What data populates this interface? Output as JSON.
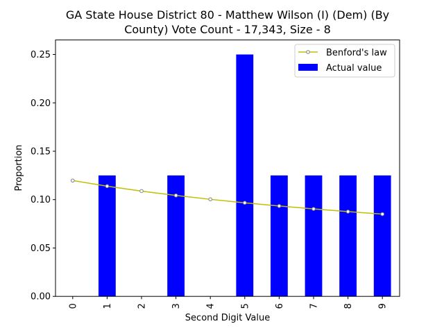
{
  "chart_data": {
    "type": "bar",
    "title_line1": "GA State House District 80 - Matthew Wilson (I) (Dem) (By",
    "title_line2": "County) Vote Count - 17,343, Size - 8",
    "xlabel": "Second Digit Value",
    "ylabel": "Proportion",
    "categories": [
      "0",
      "1",
      "2",
      "3",
      "4",
      "5",
      "6",
      "7",
      "8",
      "9"
    ],
    "ylim": [
      0,
      0.265
    ],
    "yticks": [
      "0.00",
      "0.05",
      "0.10",
      "0.15",
      "0.20",
      "0.25"
    ],
    "grid": false,
    "legend_position": "top-right",
    "series": [
      {
        "name": "Actual value",
        "type": "bar",
        "color": "#0000ff",
        "values": [
          0,
          0.125,
          0,
          0.125,
          0,
          0.25,
          0.125,
          0.125,
          0.125,
          0.125
        ]
      },
      {
        "name": "Benford's law",
        "type": "line",
        "color": "#bfbf00",
        "marker_color": "#808080",
        "values": [
          0.1197,
          0.1139,
          0.1088,
          0.1043,
          0.1003,
          0.0967,
          0.0934,
          0.0904,
          0.0876,
          0.085
        ]
      }
    ]
  }
}
